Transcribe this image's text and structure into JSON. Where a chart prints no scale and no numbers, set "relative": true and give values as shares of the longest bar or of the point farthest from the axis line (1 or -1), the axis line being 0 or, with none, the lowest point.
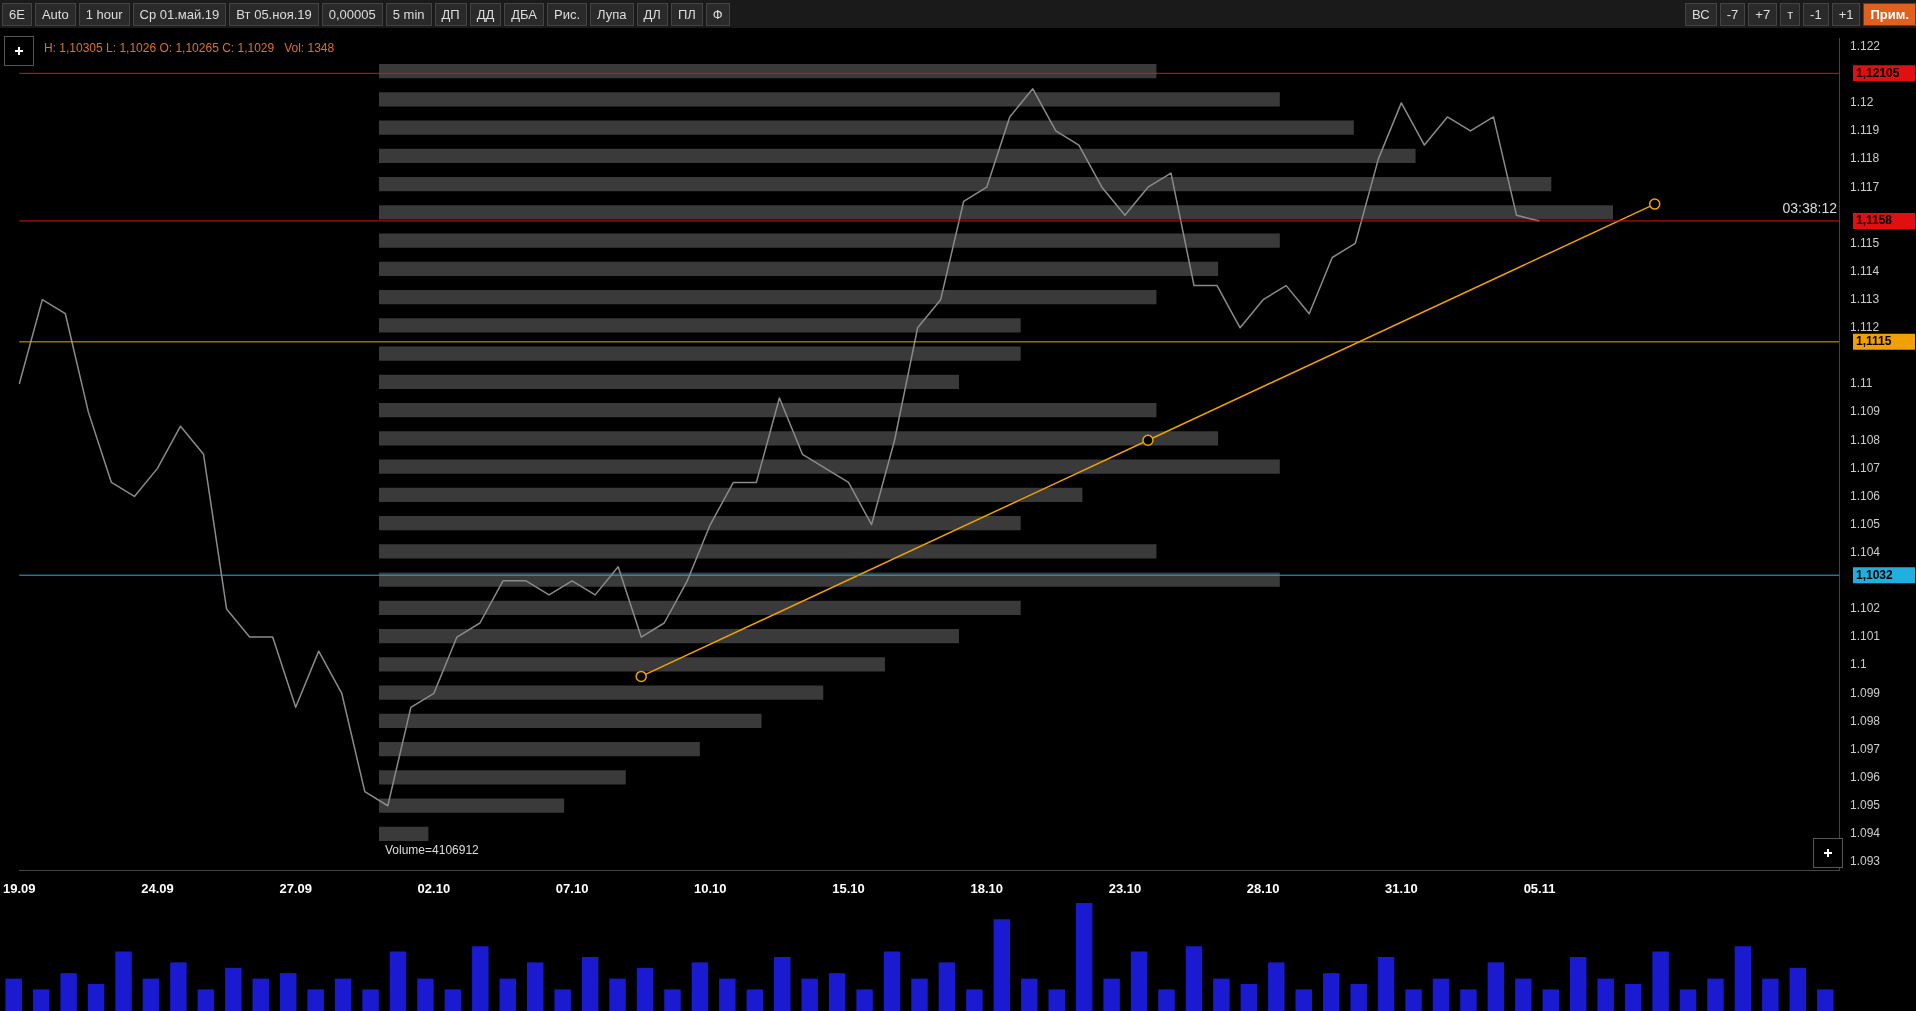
{
  "chart_data": [
    {
      "type": "line",
      "categories": [
        "19.09",
        null,
        null,
        null,
        null,
        null,
        "24.09",
        null,
        null,
        null,
        null,
        null,
        "27.09",
        null,
        null,
        null,
        null,
        null,
        "02.10",
        null,
        null,
        null,
        null,
        null,
        "07.10",
        null,
        null,
        null,
        null,
        null,
        "10.10",
        null,
        null,
        null,
        null,
        null,
        "15.10",
        null,
        null,
        null,
        null,
        null,
        "18.10",
        null,
        null,
        null,
        null,
        null,
        "23.10",
        null,
        null,
        null,
        null,
        null,
        "28.10",
        null,
        null,
        null,
        null,
        null,
        "31.10",
        null,
        null,
        null,
        null,
        null,
        "05.11",
        null,
        null,
        null,
        null,
        null,
        null,
        null,
        null,
        null,
        null,
        null,
        null,
        null
      ],
      "series": [
        {
          "color": "#8a8a8a",
          "values": [
            1.11,
            1.113,
            1.1125,
            1.109,
            1.1065,
            1.106,
            1.107,
            1.1085,
            1.1075,
            1.102,
            1.101,
            1.101,
            1.0985,
            1.1005,
            1.099,
            1.0955,
            1.095,
            1.0985,
            1.099,
            1.101,
            1.1015,
            1.103,
            1.103,
            1.1025,
            1.103,
            1.1025,
            1.1035,
            1.101,
            1.1015,
            1.103,
            1.105,
            1.1065,
            1.1065,
            1.1095,
            1.1075,
            1.107,
            1.1065,
            1.105,
            1.108,
            1.112,
            1.113,
            1.1165,
            1.117,
            1.1195,
            1.1205,
            1.119,
            1.1185,
            1.117,
            1.116,
            1.117,
            1.1175,
            1.1135,
            1.1135,
            1.112,
            1.113,
            1.1135,
            1.1125,
            1.1145,
            1.115,
            1.118,
            1.12,
            1.1185,
            1.1195,
            1.119,
            1.1195,
            1.116,
            1.1158,
            null,
            null,
            null,
            null,
            null,
            null,
            null,
            null,
            null,
            null,
            null,
            null,
            null
          ]
        },
        {
          "type": "line",
          "color": "#f0a000",
          "marker": "circle",
          "values": [
            null,
            null,
            null,
            null,
            null,
            null,
            null,
            null,
            null,
            null,
            null,
            null,
            null,
            null,
            null,
            null,
            null,
            null,
            null,
            null,
            null,
            null,
            null,
            null,
            null,
            null,
            null,
            1.0996,
            null,
            null,
            null,
            null,
            null,
            null,
            null,
            null,
            null,
            null,
            null,
            null,
            null,
            null,
            null,
            null,
            null,
            null,
            null,
            null,
            null,
            1.108,
            null,
            null,
            null,
            null,
            null,
            null,
            null,
            null,
            null,
            null,
            null,
            null,
            null,
            null,
            null,
            null,
            null,
            null,
            null,
            null,
            null,
            1.1164,
            null,
            null,
            null,
            null,
            null,
            null,
            null,
            null
          ]
        }
      ],
      "ylim": [
        1.0927,
        1.1223
      ],
      "yticks": [
        1.093,
        1.094,
        1.095,
        1.096,
        1.097,
        1.098,
        1.099,
        1.1,
        1.101,
        1.102,
        1.104,
        1.105,
        1.106,
        1.107,
        1.108,
        1.109,
        1.11,
        1.112,
        1.113,
        1.114,
        1.115,
        1.117,
        1.118,
        1.119,
        1.12,
        1.122
      ],
      "ref_lines": [
        {
          "axis": "y",
          "value": 1.12105,
          "label": "1,12105",
          "color": "#e01010"
        },
        {
          "axis": "y",
          "value": 1.1158,
          "label": "1,1158",
          "color": "#e01010"
        },
        {
          "axis": "y",
          "value": 1.1115,
          "label": "1,1115",
          "color": "#f0a000"
        },
        {
          "axis": "y",
          "value": 1.1032,
          "label": "1,1032",
          "color": "#20b0e0"
        }
      ],
      "annotations": [
        "H: 1,10305 L: 1,1026 O: 1,10265 C: 1,1029   Vol: 1348",
        "Volume=4106912",
        "03:38:12"
      ],
      "grid": false,
      "legend": false,
      "line_style": "solid"
    },
    {
      "type": "bar",
      "orientation": "horizontal",
      "relative": true,
      "color": "#3a3a3a",
      "tick_labels": false,
      "legend": false,
      "categories": [
        null,
        null,
        null,
        null,
        null,
        null,
        null,
        null,
        null,
        null,
        null,
        null,
        null,
        null,
        null,
        null,
        null,
        null,
        null,
        null,
        null,
        null,
        null,
        null,
        null,
        null,
        null,
        null
      ],
      "values": [
        0.63,
        0.73,
        0.79,
        0.84,
        0.95,
        1,
        0.73,
        0.68,
        0.63,
        0.52,
        0.52,
        0.47,
        0.63,
        0.68,
        0.73,
        0.57,
        0.52,
        0.63,
        0.73,
        0.52,
        0.47,
        0.41,
        0.36,
        0.31,
        0.26,
        0.2,
        0.15,
        0.04
      ]
    },
    {
      "type": "bar",
      "relative": true,
      "color": "#1a1ad0",
      "tick_labels": false,
      "legend": false,
      "categories": [
        null,
        null,
        null,
        null,
        null,
        null,
        null,
        null,
        null,
        null,
        null,
        null,
        null,
        null,
        null,
        null,
        null,
        null,
        null,
        null,
        null,
        null,
        null,
        null,
        null,
        null,
        null,
        null,
        null,
        null,
        null,
        null,
        null,
        null,
        null,
        null,
        null,
        null,
        null,
        null,
        null,
        null,
        null,
        null,
        null,
        null,
        null,
        null,
        null,
        null,
        null,
        null,
        null,
        null,
        null,
        null,
        null,
        null,
        null,
        null,
        null,
        null,
        null,
        null,
        null,
        null,
        null
      ],
      "values": [
        0.3,
        0.2,
        0.35,
        0.25,
        0.55,
        0.3,
        0.45,
        0.2,
        0.4,
        0.3,
        0.35,
        0.2,
        0.3,
        0.2,
        0.55,
        0.3,
        0.2,
        0.6,
        0.3,
        0.45,
        0.2,
        0.5,
        0.3,
        0.4,
        0.2,
        0.45,
        0.3,
        0.2,
        0.5,
        0.3,
        0.35,
        0.2,
        0.55,
        0.3,
        0.45,
        0.2,
        0.85,
        0.3,
        0.2,
        1,
        0.3,
        0.55,
        0.2,
        0.6,
        0.3,
        0.25,
        0.45,
        0.2,
        0.35,
        0.25,
        0.5,
        0.2,
        0.3,
        0.2,
        0.45,
        0.3,
        0.2,
        0.5,
        0.3,
        0.25,
        0.55,
        0.2,
        0.3,
        0.6,
        0.3,
        0.4,
        0.2
      ]
    },
    {
      "type": "other",
      "annotations": [
        "6E",
        "Auto",
        "1 hour",
        "Ср 01.май.19",
        "Вт 05.ноя.19",
        "0,00005",
        "5 min",
        "ДП",
        "ДД",
        "ДБА",
        "Рис.",
        "Лупа",
        "ДЛ",
        "ПЛ",
        "Ф",
        "ВС",
        "-7",
        "+7",
        "т",
        "-1",
        "+1",
        "Прим."
      ]
    }
  ]
}
